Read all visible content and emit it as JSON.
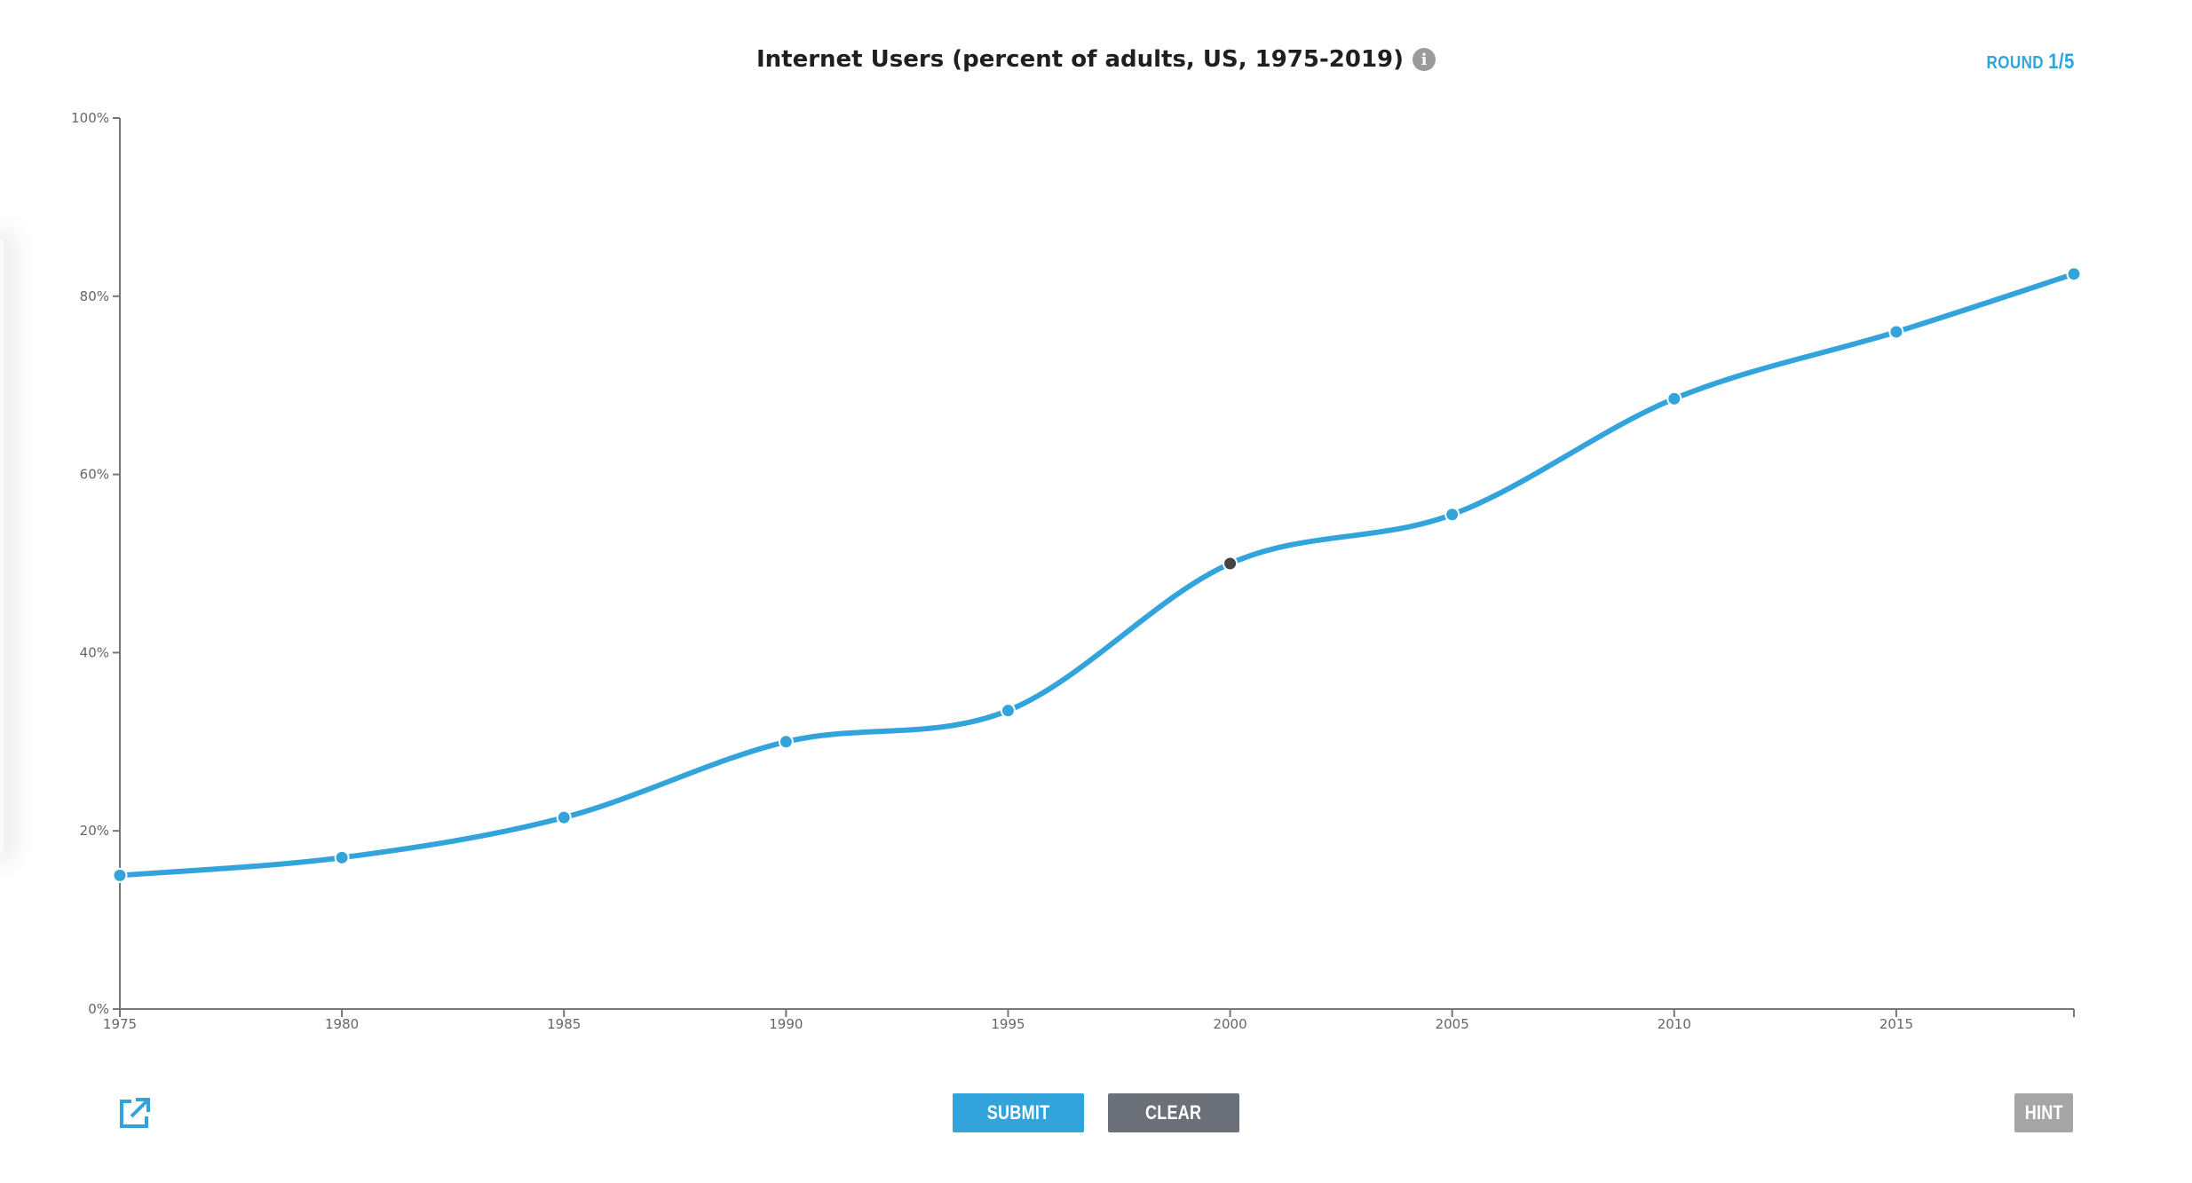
{
  "header": {
    "title": "Internet Users (percent of adults, US, 1975-2019)",
    "info_icon": "info-icon",
    "round_label": "ROUND",
    "round_value": "1/5"
  },
  "buttons": {
    "submit": "SUBMIT",
    "clear": "CLEAR",
    "hint": "HINT",
    "share_icon": "external-link-icon"
  },
  "colors": {
    "accent": "#33a4db",
    "clear_button": "#6b7079",
    "hint_button": "#a6a6a6",
    "selected_point": "#444444",
    "axis": "#777777"
  },
  "chart_data": {
    "type": "line",
    "x": [
      1975,
      1980,
      1985,
      1990,
      1995,
      2000,
      2005,
      2010,
      2015,
      2019
    ],
    "series": [
      {
        "values": [
          15,
          17,
          21.5,
          30,
          33.5,
          50,
          55.5,
          68.5,
          76,
          82.5
        ]
      }
    ],
    "selected_index": 5,
    "xlim": [
      1975,
      2019
    ],
    "ylim": [
      0,
      100
    ],
    "x_ticks": [
      1975,
      1980,
      1985,
      1990,
      1995,
      2000,
      2005,
      2010,
      2015
    ],
    "x_tick_labels": [
      "1975",
      "1980",
      "1985",
      "1990",
      "1995",
      "2000",
      "2005",
      "2010",
      "2015"
    ],
    "y_ticks": [
      0,
      20,
      40,
      60,
      80,
      100
    ],
    "y_tick_labels": [
      "0%",
      "20%",
      "40%",
      "60%",
      "80%",
      "100%"
    ],
    "xlabel": "",
    "ylabel": "",
    "grid": false,
    "legend": "none"
  }
}
